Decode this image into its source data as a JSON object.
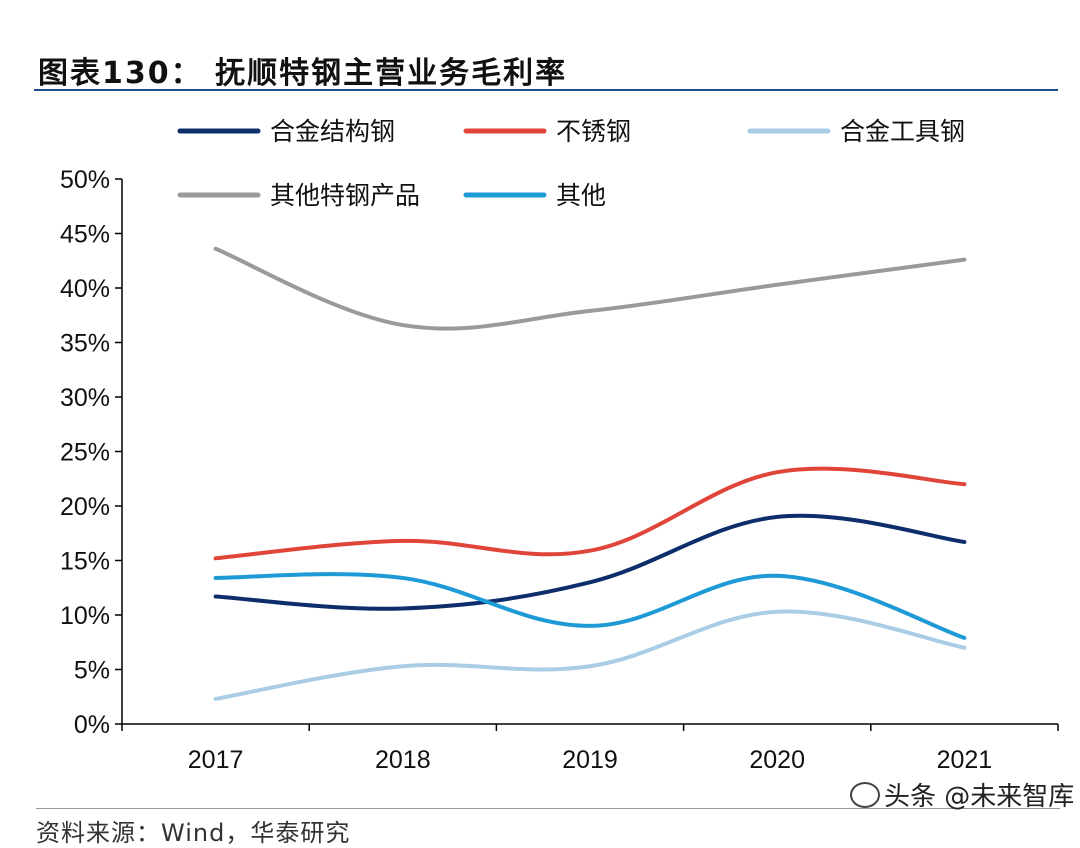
{
  "title": "图表130： 抚顺特钢主营业务毛利率",
  "source": "资料来源：Wind，华泰研究",
  "watermark": "头条 @未来智库",
  "chart_data": {
    "type": "line",
    "title": "抚顺特钢主营业务毛利率",
    "categories": [
      "2017",
      "2018",
      "2019",
      "2020",
      "2021"
    ],
    "ylim": [
      0,
      50
    ],
    "yticks": [
      0,
      5,
      10,
      15,
      20,
      25,
      30,
      35,
      40,
      45,
      50
    ],
    "ytick_labels": [
      "0%",
      "5%",
      "10%",
      "15%",
      "20%",
      "25%",
      "30%",
      "35%",
      "40%",
      "45%",
      "50%"
    ],
    "legend_position": "top",
    "series": [
      {
        "name": "合金结构钢",
        "color": "#0d2d6b",
        "values": [
          11.7,
          10.6,
          13.0,
          19.0,
          16.7
        ]
      },
      {
        "name": "不锈钢",
        "color": "#e0453a",
        "values": [
          15.2,
          16.8,
          15.9,
          23.1,
          22.0
        ]
      },
      {
        "name": "合金工具钢",
        "color": "#a9cde4",
        "values": [
          2.3,
          5.3,
          5.3,
          10.3,
          7.0
        ]
      },
      {
        "name": "其他特钢产品",
        "color": "#9a9a9a",
        "values": [
          43.6,
          36.6,
          37.9,
          40.3,
          42.6
        ]
      },
      {
        "name": "其他",
        "color": "#1e9ad6",
        "values": [
          13.4,
          13.4,
          9.0,
          13.6,
          7.9
        ]
      }
    ]
  }
}
